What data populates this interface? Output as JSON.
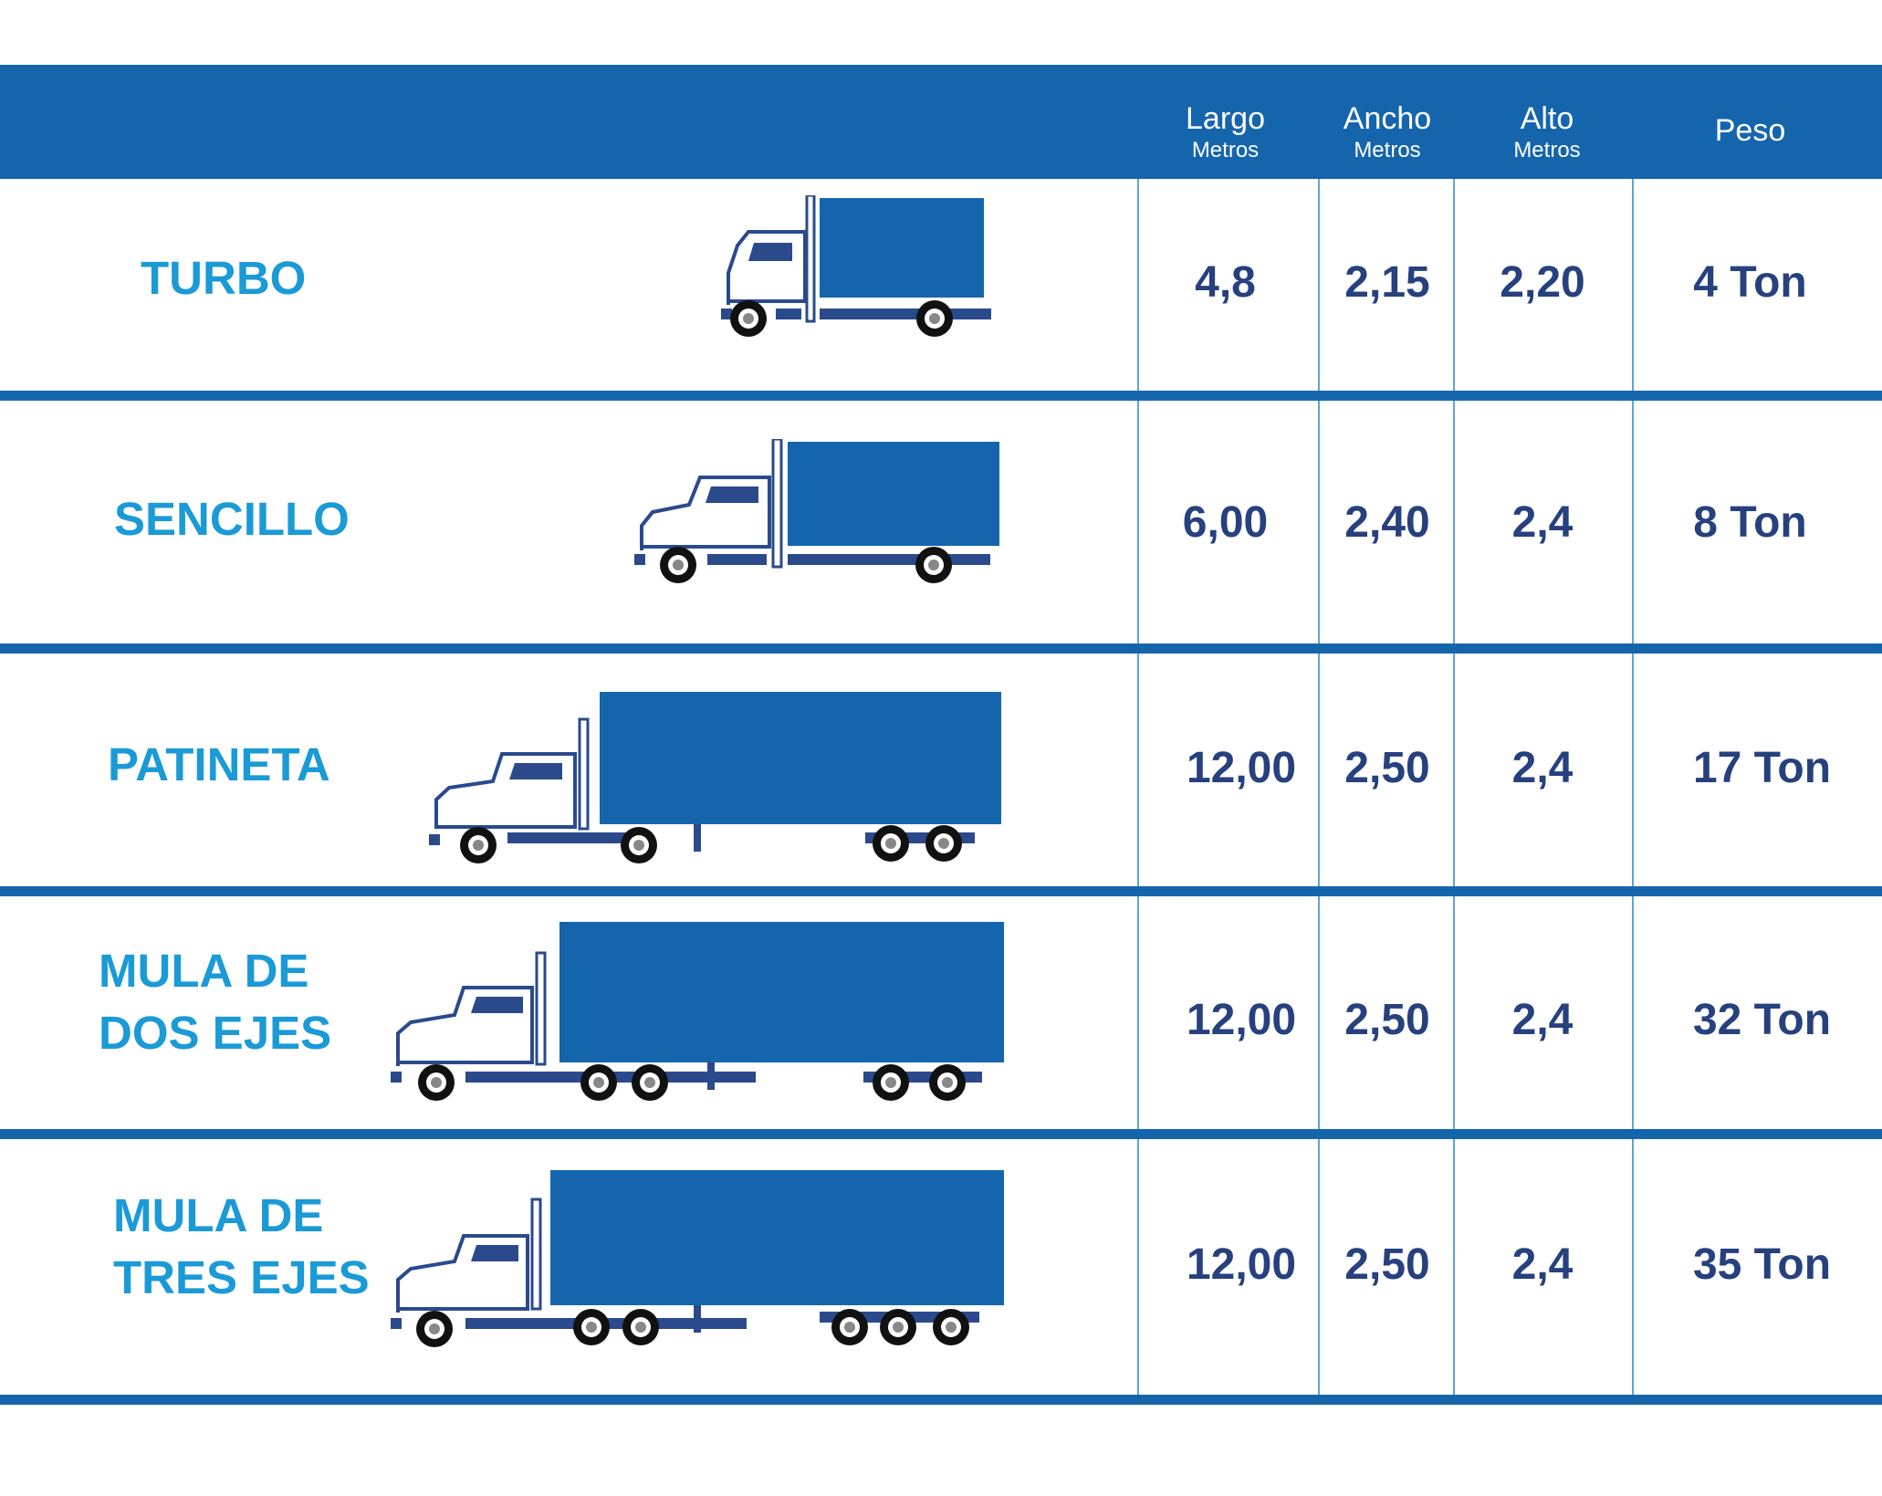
{
  "header": {
    "columns": [
      {
        "label": "Largo",
        "sub": "Metros"
      },
      {
        "label": "Ancho",
        "sub": "Metros"
      },
      {
        "label": "Alto",
        "sub": "Metros"
      },
      {
        "label": "Peso",
        "sub": ""
      }
    ]
  },
  "rows": [
    {
      "name_lines": [
        "TURBO"
      ],
      "largo": "4,8",
      "ancho": "2,15",
      "alto": "2,20",
      "peso": "4 Ton",
      "truck_icon": "box-truck-icon"
    },
    {
      "name_lines": [
        "SENCILLO"
      ],
      "largo": "6,00",
      "ancho": "2,40",
      "alto": "2,4",
      "peso": "8 Ton",
      "truck_icon": "box-truck-icon"
    },
    {
      "name_lines": [
        "PATINETA"
      ],
      "largo": "12,00",
      "ancho": "2,50",
      "alto": "2,4",
      "peso": "17 Ton",
      "truck_icon": "semi-truck-icon"
    },
    {
      "name_lines": [
        "MULA DE",
        "DOS EJES"
      ],
      "largo": "12,00",
      "ancho": "2,50",
      "alto": "2,4",
      "peso": "32 Ton",
      "truck_icon": "semi-truck-icon"
    },
    {
      "name_lines": [
        "MULA DE",
        "TRES EJES"
      ],
      "largo": "12,00",
      "ancho": "2,50",
      "alto": "2,4",
      "peso": "35 Ton",
      "truck_icon": "semi-truck-icon"
    }
  ],
  "colors": {
    "header_bg": "#1565ad",
    "name_text": "#1a9ad6",
    "value_text": "#27407e",
    "truck_body": "#1565ad",
    "truck_chassis": "#2a4a8c"
  }
}
